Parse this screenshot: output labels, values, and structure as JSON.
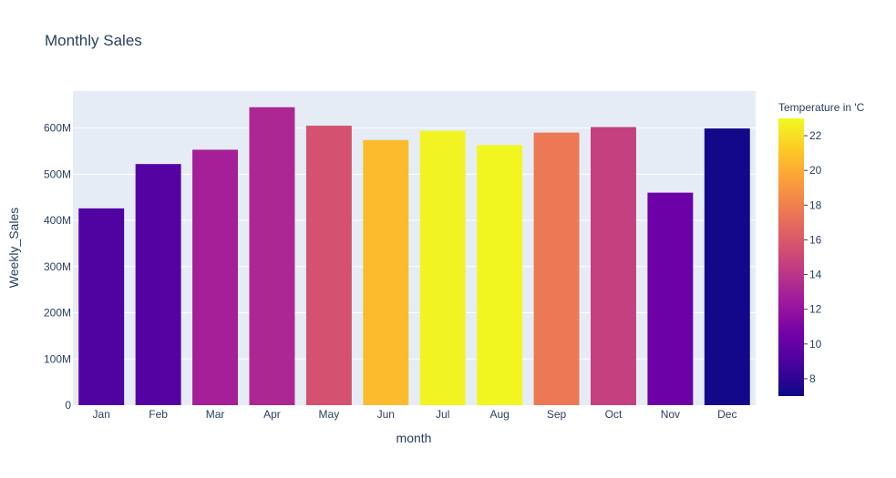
{
  "chart_data": {
    "type": "bar",
    "title": "Monthly Sales",
    "xlabel": "month",
    "ylabel": "Weekly_Sales",
    "categories": [
      "Jan",
      "Feb",
      "Mar",
      "Apr",
      "May",
      "Jun",
      "Jul",
      "Aug",
      "Sep",
      "Oct",
      "Nov",
      "Dec"
    ],
    "values": [
      426000000,
      522000000,
      553000000,
      645000000,
      605000000,
      574000000,
      594000000,
      563000000,
      590000000,
      602000000,
      460000000,
      599000000
    ],
    "color_values": [
      9.2,
      9.4,
      12.8,
      13.2,
      15.6,
      20.6,
      22.8,
      22.9,
      17.6,
      14.6,
      10.3,
      7.2
    ],
    "ylim": [
      0,
      680000000
    ],
    "yticks": [
      0,
      100000000,
      200000000,
      300000000,
      400000000,
      500000000,
      600000000
    ],
    "ytick_labels": [
      "0",
      "100M",
      "200M",
      "300M",
      "400M",
      "500M",
      "600M"
    ],
    "colorbar": {
      "title": "Temperature in 'C",
      "range": [
        7,
        23
      ],
      "ticks": [
        8,
        10,
        12,
        14,
        16,
        18,
        20,
        22
      ],
      "tick_labels": [
        "8",
        "10",
        "12",
        "14",
        "16",
        "18",
        "20",
        "22"
      ],
      "colorscale": [
        "#0d0887",
        "#46039f",
        "#7201a8",
        "#9c179e",
        "#bd3786",
        "#d8576b",
        "#ed7953",
        "#fb9f3a",
        "#fdca26",
        "#f0f921"
      ]
    },
    "grid": true,
    "legend": "right"
  }
}
